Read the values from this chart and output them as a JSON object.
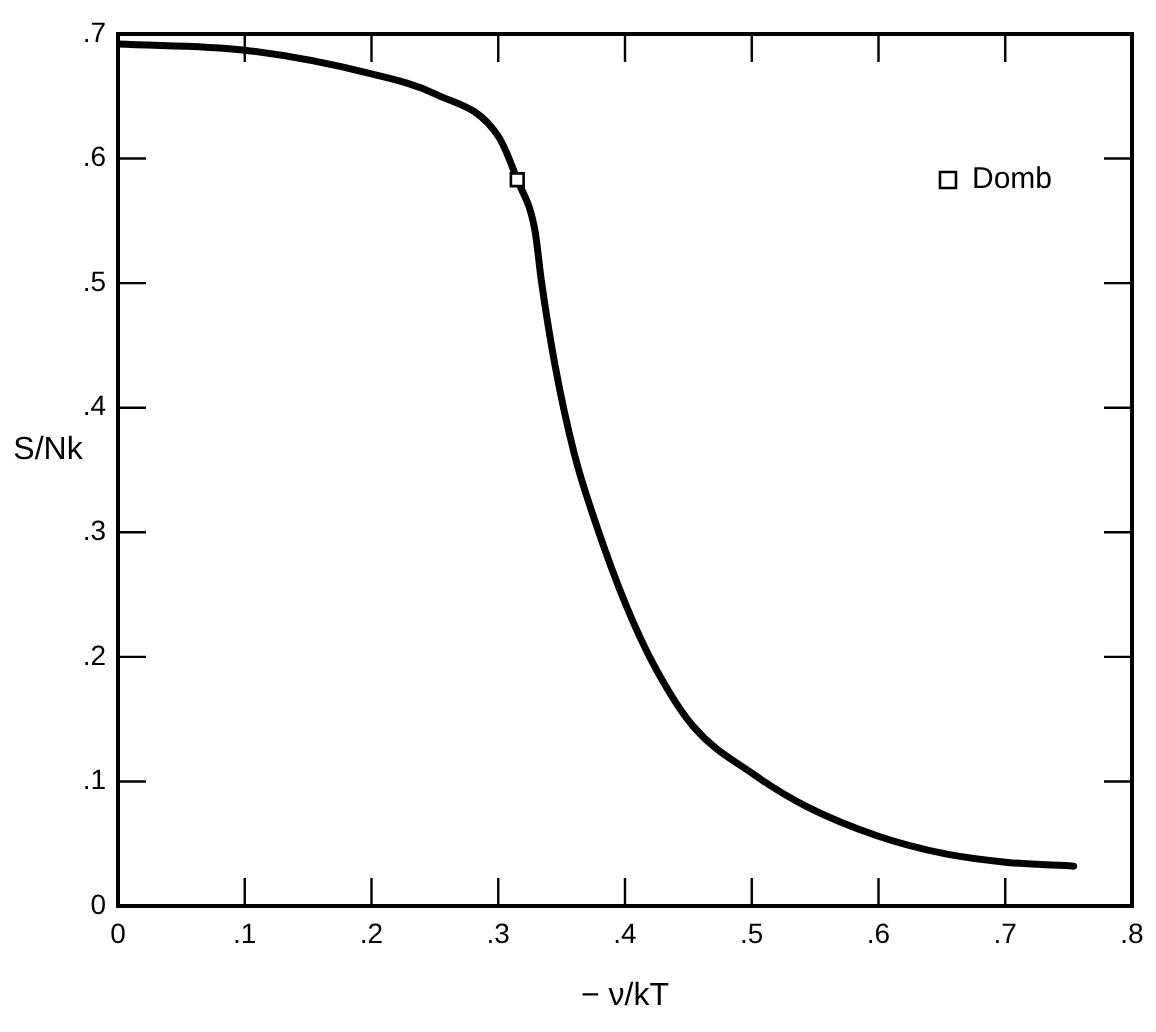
{
  "chart_data": {
    "type": "line",
    "xlabel": "− ν/kT",
    "ylabel": "S/Nk",
    "xlim": [
      0,
      0.8
    ],
    "ylim": [
      0,
      0.7
    ],
    "xticks": [
      0,
      {
        "value": 0.1,
        "label": ".1"
      },
      {
        "value": 0.2,
        "label": ".2"
      },
      {
        "value": 0.3,
        "label": ".3"
      },
      {
        "value": 0.4,
        "label": ".4"
      },
      {
        "value": 0.5,
        "label": ".5"
      },
      {
        "value": 0.6,
        "label": ".6"
      },
      {
        "value": 0.7,
        "label": ".7"
      },
      {
        "value": 0.8,
        "label": ".8"
      }
    ],
    "yticks": [
      0,
      {
        "value": 0.1,
        "label": ".1"
      },
      {
        "value": 0.2,
        "label": ".2"
      },
      {
        "value": 0.3,
        "label": ".3"
      },
      {
        "value": 0.4,
        "label": ".4"
      },
      {
        "value": 0.5,
        "label": ".5"
      },
      {
        "value": 0.6,
        "label": ".6"
      },
      {
        "value": 0.7,
        "label": ".7"
      }
    ],
    "grid": false,
    "legend": "top right",
    "series": [
      {
        "type": "line",
        "color": "#000000",
        "marker": "none",
        "line_style": "solid",
        "x": [
          0,
          0.1,
          0.2,
          0.25,
          0.3,
          0.315,
          0.329,
          0.334,
          0.345,
          0.36,
          0.376,
          0.401,
          0.423,
          0.454,
          0.501,
          0.543,
          0.6,
          0.652,
          0.702,
          0.754
        ],
        "values": [
          0.692,
          0.687,
          0.668,
          0.652,
          0.618,
          0.583,
          0.542,
          0.502,
          0.433,
          0.363,
          0.31,
          0.241,
          0.193,
          0.144,
          0.106,
          0.08,
          0.056,
          0.042,
          0.035,
          0.032
        ]
      },
      {
        "type": "scatter",
        "name": "Domb",
        "color": "#000000",
        "marker": "square",
        "x": [
          0.315
        ],
        "values": [
          0.583
        ]
      }
    ]
  }
}
